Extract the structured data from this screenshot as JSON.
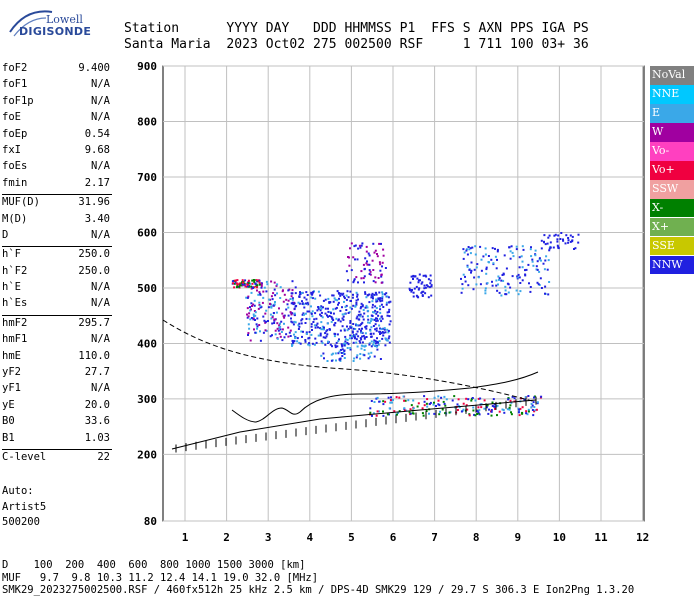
{
  "logo": {
    "line1": "Lowell",
    "line2": "DIGISONDE"
  },
  "header": {
    "line1": "Station      YYYY DAY   DDD HHMMSS P1  FFS S AXN PPS IGA PS",
    "line2": "Santa Maria  2023 Oct02 275 002500 RSF     1 711 100 03+ 36"
  },
  "params": [
    {
      "label": "foF2",
      "value": "9.400"
    },
    {
      "label": "foF1",
      "value": "N/A"
    },
    {
      "label": "foF1p",
      "value": "N/A"
    },
    {
      "label": "foE",
      "value": "N/A"
    },
    {
      "label": "foEp",
      "value": "0.54"
    },
    {
      "label": "fxI",
      "value": "9.68"
    },
    {
      "label": "foEs",
      "value": "N/A"
    },
    {
      "label": "fmin",
      "value": "2.17"
    },
    {
      "sep": true
    },
    {
      "label": "MUF(D)",
      "value": "31.96"
    },
    {
      "label": "M(D)",
      "value": "3.40"
    },
    {
      "label": "D",
      "value": "N/A"
    },
    {
      "sep": true
    },
    {
      "label": "h`F",
      "value": "250.0"
    },
    {
      "label": "h`F2",
      "value": "250.0"
    },
    {
      "label": "h`E",
      "value": "N/A"
    },
    {
      "label": "h`Es",
      "value": "N/A"
    },
    {
      "sep": true
    },
    {
      "label": "hmF2",
      "value": "295.7"
    },
    {
      "label": "hmF1",
      "value": "N/A"
    },
    {
      "label": "hmE",
      "value": "110.0"
    },
    {
      "label": "yF2",
      "value": "27.7"
    },
    {
      "label": "yF1",
      "value": "N/A"
    },
    {
      "label": "yE",
      "value": "20.0"
    },
    {
      "label": "B0",
      "value": "33.6"
    },
    {
      "label": "B1",
      "value": "1.03"
    },
    {
      "sep": true
    },
    {
      "label": "C-level",
      "value": "22"
    }
  ],
  "auto": {
    "label": "Auto:",
    "system": "Artist5",
    "version": "500200"
  },
  "axes": {
    "y_ticks": [
      80,
      200,
      300,
      400,
      500,
      600,
      700,
      800,
      900
    ],
    "x_ticks": [
      1,
      2,
      3,
      4,
      5,
      6,
      7,
      8,
      9,
      10,
      11,
      12
    ]
  },
  "legend": [
    {
      "label": "NoVal",
      "color": "#808080"
    },
    {
      "label": "NNE",
      "color": "#00c8ff"
    },
    {
      "label": "E",
      "color": "#3aa8e8"
    },
    {
      "label": "W",
      "color": "#a000a0"
    },
    {
      "label": "Vo-",
      "color": "#ff40c0"
    },
    {
      "label": "Vo+",
      "color": "#f00040"
    },
    {
      "label": "SSW",
      "color": "#f0a0a0"
    },
    {
      "label": "X-",
      "color": "#008000"
    },
    {
      "label": "X+",
      "color": "#70b050"
    },
    {
      "label": "SSE",
      "color": "#c8c800"
    },
    {
      "label": "NNW",
      "color": "#2020e0"
    }
  ],
  "footer": {
    "line1": "D    100  200  400  600  800 1000 1500 3000 [km]",
    "line2": "MUF   9.7  9.8 10.3 11.2 12.4 14.1 19.0 32.0 [MHz]",
    "line3": "SMK29_2023275002500.RSF / 460fx512h 25 kHz 2.5 km / DPS-4D SMK29 129 / 29.7 S 306.3 E Ion2Png 1.3.20"
  }
}
